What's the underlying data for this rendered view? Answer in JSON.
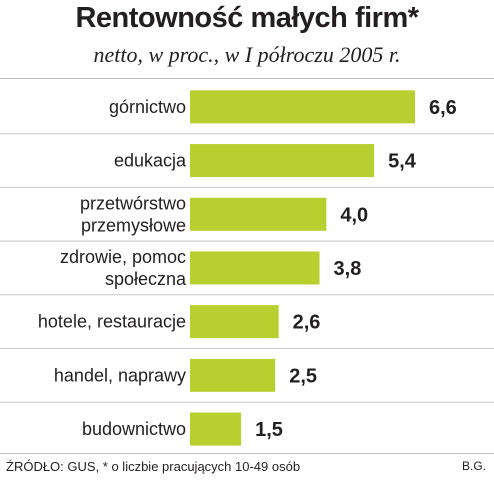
{
  "chart_data": {
    "type": "bar",
    "orientation": "horizontal",
    "title": "Rentowność małych firm*",
    "subtitle": "netto, w proc., w I półroczu 2005 r.",
    "categories": [
      [
        "górnictwo"
      ],
      [
        "edukacja"
      ],
      [
        "przetwórstwo",
        "przemysłowe"
      ],
      [
        "zdrowie, pomoc",
        "społeczna"
      ],
      [
        "hotele, restauracje"
      ],
      [
        "handel, naprawy"
      ],
      [
        "budownictwo"
      ]
    ],
    "values": [
      6.6,
      5.4,
      4.0,
      3.8,
      2.6,
      2.5,
      1.5
    ],
    "value_labels": [
      "6,6",
      "5,4",
      "4,0",
      "3,8",
      "2,6",
      "2,5",
      "1,5"
    ],
    "highlight_index": 0,
    "xlim": [
      0,
      6.6
    ],
    "grid": false,
    "colors": {
      "bar": "#b7cf2f",
      "highlight_label": "#c8194c",
      "label": "#231f20"
    }
  },
  "footer": {
    "source": "ŹRÓDŁO: GUS, * o liczbie pracujących 10-49 osób",
    "credit": "B.G."
  }
}
